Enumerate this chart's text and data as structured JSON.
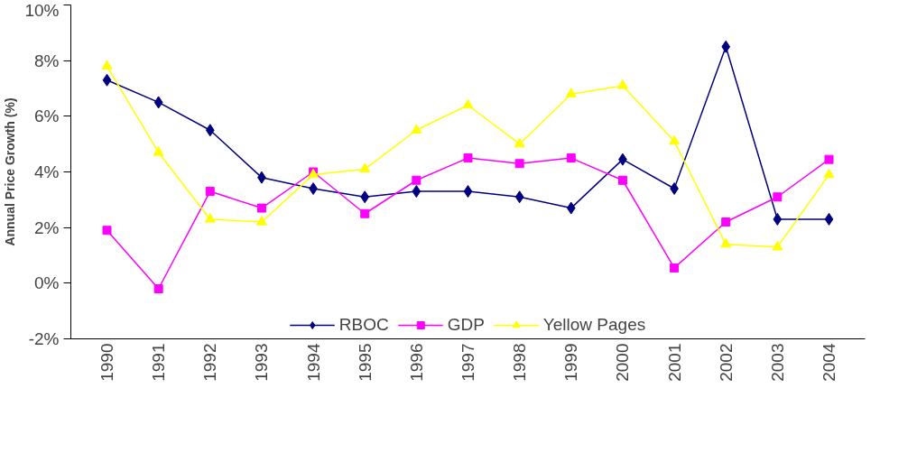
{
  "chart_data": {
    "type": "line",
    "ylabel": "Annual Price Growth (%)",
    "categories": [
      "1990",
      "1991",
      "1992",
      "1993",
      "1994",
      "1995",
      "1996",
      "1997",
      "1998",
      "1999",
      "2000",
      "2001",
      "2002",
      "2003",
      "2004"
    ],
    "series": [
      {
        "name": "RBOC",
        "color": "#000080",
        "marker": "diamond",
        "values": [
          7.3,
          6.5,
          5.5,
          3.8,
          3.4,
          3.1,
          3.3,
          3.3,
          3.1,
          2.7,
          4.45,
          3.4,
          8.5,
          2.3,
          2.3
        ]
      },
      {
        "name": "GDP",
        "color": "#ff00ff",
        "marker": "square",
        "values": [
          1.9,
          -0.2,
          3.3,
          2.7,
          4.0,
          2.5,
          3.7,
          4.5,
          4.3,
          4.5,
          3.7,
          0.55,
          2.2,
          3.1,
          4.45
        ]
      },
      {
        "name": "Yellow Pages",
        "color": "#ffff00",
        "marker": "triangle",
        "values": [
          7.8,
          4.7,
          2.3,
          2.2,
          3.9,
          4.1,
          5.5,
          6.4,
          5.0,
          6.8,
          7.1,
          5.1,
          1.4,
          1.3,
          3.9
        ]
      }
    ],
    "ylim": [
      -2,
      10
    ],
    "yticks": [
      {
        "value": -2,
        "label": "-2%"
      },
      {
        "value": 0,
        "label": "0%"
      },
      {
        "value": 2,
        "label": "2%"
      },
      {
        "value": 4,
        "label": "4%"
      },
      {
        "value": 6,
        "label": "6%"
      },
      {
        "value": 8,
        "label": "8%"
      },
      {
        "value": 10,
        "label": "10%"
      }
    ],
    "grid": false,
    "legend": "bottom",
    "line_style": "solid"
  }
}
